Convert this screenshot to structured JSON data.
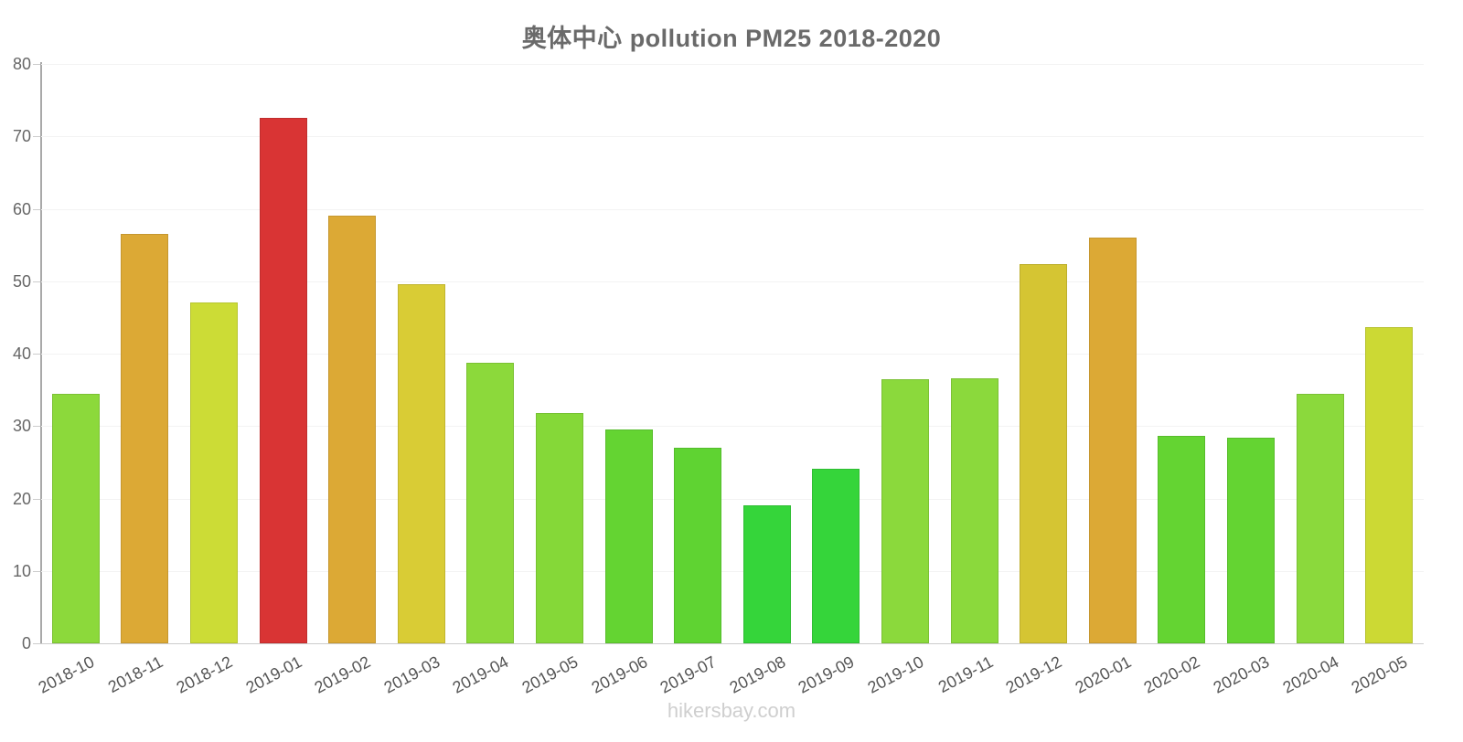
{
  "title": "奥体中心 pollution PM25 2018-2020",
  "watermark": "hikersbay.com",
  "chart_data": {
    "type": "bar",
    "title": "奥体中心 pollution PM25 2018-2020",
    "xlabel": "",
    "ylabel": "",
    "ylim": [
      0,
      80
    ],
    "yticks": [
      0,
      10,
      20,
      30,
      40,
      50,
      60,
      70,
      80
    ],
    "grid": true,
    "legend": false,
    "categories": [
      "2018-10",
      "2018-11",
      "2018-12",
      "2019-01",
      "2019-02",
      "2019-03",
      "2019-04",
      "2019-05",
      "2019-06",
      "2019-07",
      "2019-08",
      "2019-09",
      "2019-10",
      "2019-11",
      "2019-12",
      "2020-01",
      "2020-02",
      "2020-03",
      "2020-04",
      "2020-05"
    ],
    "values": [
      34.4,
      56.5,
      47.1,
      72.5,
      59.1,
      49.6,
      38.7,
      31.8,
      29.5,
      27.0,
      19.1,
      24.1,
      36.5,
      36.6,
      52.4,
      56.0,
      28.7,
      28.4,
      34.4,
      43.7
    ],
    "bar_colors": [
      "#8CD93B",
      "#DCA935",
      "#CCDC36",
      "#D93434",
      "#DCA935",
      "#D9CC35",
      "#8CD93B",
      "#85D838",
      "#64D432",
      "#5FD332",
      "#35D53A",
      "#35D53A",
      "#8BD93C",
      "#8BD93C",
      "#D5C533",
      "#DCA935",
      "#64D432",
      "#64D432",
      "#8BD93C",
      "#CCD934"
    ],
    "bar_border_colors": [
      "#7BC133",
      "#C5972F",
      "#B6C530",
      "#C02E2E",
      "#C5972F",
      "#C1B52F",
      "#7BC133",
      "#76C132",
      "#58BC2C",
      "#54BC2C",
      "#2FBD33",
      "#2FBD33",
      "#7BC135",
      "#7BC135",
      "#BDAF2D",
      "#C5972F",
      "#58BC2C",
      "#58BC2C",
      "#7BC135",
      "#B5C12E"
    ]
  },
  "colors": {
    "axis": "#a9a9a9",
    "grid": "#f3f3f3",
    "title_text": "#6a6a6a",
    "tick_text": "#666666",
    "watermark_text": "#cfcfcf"
  }
}
